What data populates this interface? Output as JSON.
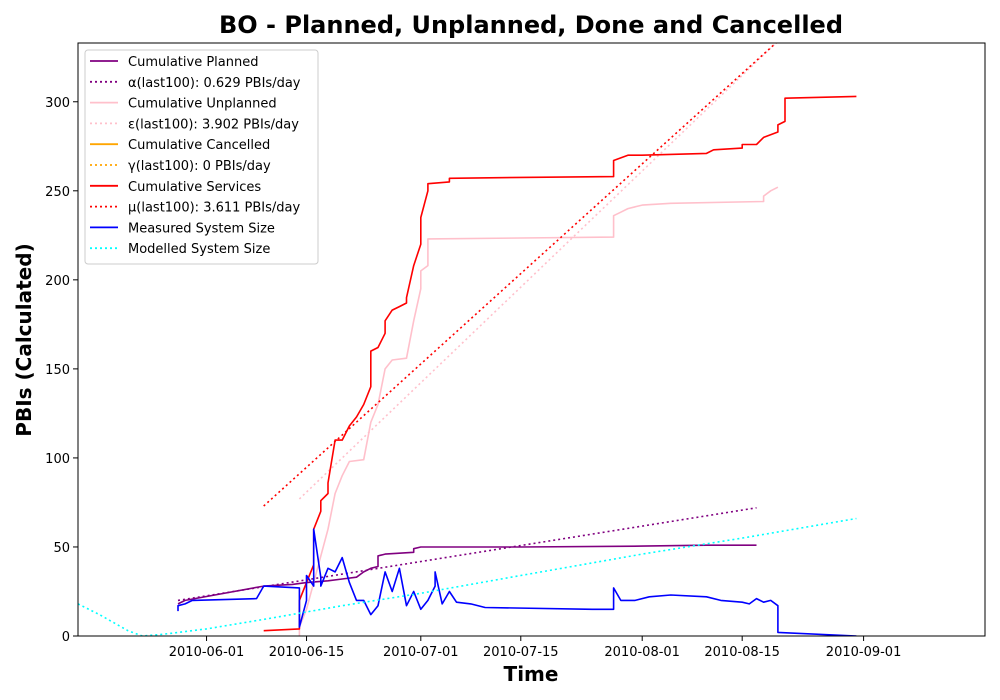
{
  "chart_data": {
    "type": "line",
    "title": "BO - Planned, Unplanned, Done  and Cancelled",
    "xlabel": "Time",
    "ylabel": "PBIs (Calculated)",
    "xlim": [
      "2010-05-14",
      "2010-09-18"
    ],
    "ylim": [
      0,
      333
    ],
    "x_ticks": [
      "2010-06-01",
      "2010-06-15",
      "2010-07-01",
      "2010-07-15",
      "2010-08-01",
      "2010-08-15",
      "2010-09-01"
    ],
    "y_ticks": [
      0,
      50,
      100,
      150,
      200,
      250,
      300
    ],
    "legend_position": "top-left",
    "grid": false,
    "series": [
      {
        "name": "Cumulative Planned",
        "color": "#800080",
        "style": "solid",
        "points": [
          [
            "2010-05-28",
            18
          ],
          [
            "2010-05-29",
            20
          ],
          [
            "2010-06-09",
            28
          ],
          [
            "2010-06-13",
            29
          ],
          [
            "2010-06-15",
            30
          ],
          [
            "2010-06-18",
            31
          ],
          [
            "2010-06-20",
            32
          ],
          [
            "2010-06-22",
            33
          ],
          [
            "2010-06-23",
            36
          ],
          [
            "2010-06-24",
            38
          ],
          [
            "2010-06-25",
            39
          ],
          [
            "2010-06-25",
            45
          ],
          [
            "2010-06-26",
            46
          ],
          [
            "2010-06-30",
            47
          ],
          [
            "2010-06-30",
            49
          ],
          [
            "2010-07-01",
            50
          ],
          [
            "2010-07-15",
            50
          ],
          [
            "2010-08-01",
            50.5
          ],
          [
            "2010-08-10",
            51
          ],
          [
            "2010-08-17",
            51
          ]
        ]
      },
      {
        "name": "α(last100): 0.629 PBIs/day",
        "color": "#800080",
        "style": "dotted",
        "points": [
          [
            "2010-05-28",
            20
          ],
          [
            "2010-08-17",
            72
          ]
        ]
      },
      {
        "name": "Cumulative Unplanned",
        "color": "#ffc0cb",
        "style": "solid",
        "points": [
          [
            "2010-06-14",
            0
          ],
          [
            "2010-06-14",
            5
          ],
          [
            "2010-06-15",
            15
          ],
          [
            "2010-06-16",
            30
          ],
          [
            "2010-06-18",
            60
          ],
          [
            "2010-06-19",
            80
          ],
          [
            "2010-06-20",
            90
          ],
          [
            "2010-06-21",
            98
          ],
          [
            "2010-06-23",
            99
          ],
          [
            "2010-06-24",
            120
          ],
          [
            "2010-06-25",
            130
          ],
          [
            "2010-06-26",
            150
          ],
          [
            "2010-06-27",
            155
          ],
          [
            "2010-06-29",
            156
          ],
          [
            "2010-06-30",
            177
          ],
          [
            "2010-07-01",
            195
          ],
          [
            "2010-07-01",
            205
          ],
          [
            "2010-07-02",
            208
          ],
          [
            "2010-07-02",
            223
          ],
          [
            "2010-07-15",
            223.5
          ],
          [
            "2010-07-28",
            224
          ],
          [
            "2010-07-28",
            236
          ],
          [
            "2010-07-29",
            238
          ],
          [
            "2010-07-30",
            240
          ],
          [
            "2010-08-01",
            242
          ],
          [
            "2010-08-05",
            243
          ],
          [
            "2010-08-18",
            244
          ],
          [
            "2010-08-18",
            247
          ],
          [
            "2010-08-19",
            250
          ],
          [
            "2010-08-20",
            252
          ]
        ]
      },
      {
        "name": "ε(last100): 3.902 PBIs/day",
        "color": "#ffc0cb",
        "style": "dotted",
        "points": [
          [
            "2010-06-14",
            77
          ],
          [
            "2010-08-20",
            334
          ]
        ]
      },
      {
        "name": "Cumulative Cancelled",
        "color": "#ffa500",
        "style": "solid",
        "points": []
      },
      {
        "name": "γ(last100): 0 PBIs/day",
        "color": "#ffa500",
        "style": "dotted",
        "points": []
      },
      {
        "name": "Cumulative Services",
        "color": "#ff0000",
        "style": "solid",
        "points": [
          [
            "2010-06-09",
            3
          ],
          [
            "2010-06-14",
            4
          ],
          [
            "2010-06-14",
            20
          ],
          [
            "2010-06-15",
            30
          ],
          [
            "2010-06-16",
            40
          ],
          [
            "2010-06-16",
            60
          ],
          [
            "2010-06-17",
            70
          ],
          [
            "2010-06-17",
            76
          ],
          [
            "2010-06-18",
            80
          ],
          [
            "2010-06-18",
            86
          ],
          [
            "2010-06-19",
            110
          ],
          [
            "2010-06-20",
            110
          ],
          [
            "2010-06-21",
            118
          ],
          [
            "2010-06-22",
            123
          ],
          [
            "2010-06-23",
            130
          ],
          [
            "2010-06-24",
            140
          ],
          [
            "2010-06-24",
            160
          ],
          [
            "2010-06-25",
            162
          ],
          [
            "2010-06-26",
            170
          ],
          [
            "2010-06-26",
            177
          ],
          [
            "2010-06-27",
            183
          ],
          [
            "2010-06-28",
            185
          ],
          [
            "2010-06-29",
            187
          ],
          [
            "2010-06-29",
            190
          ],
          [
            "2010-06-30",
            208
          ],
          [
            "2010-07-01",
            220
          ],
          [
            "2010-07-01",
            235
          ],
          [
            "2010-07-02",
            250
          ],
          [
            "2010-07-02",
            254
          ],
          [
            "2010-07-05",
            255
          ],
          [
            "2010-07-05",
            257
          ],
          [
            "2010-07-15",
            257.5
          ],
          [
            "2010-07-28",
            258
          ],
          [
            "2010-07-28",
            267
          ],
          [
            "2010-07-30",
            270
          ],
          [
            "2010-08-01",
            270
          ],
          [
            "2010-08-10",
            271
          ],
          [
            "2010-08-11",
            273
          ],
          [
            "2010-08-15",
            274
          ],
          [
            "2010-08-15",
            276
          ],
          [
            "2010-08-17",
            276
          ],
          [
            "2010-08-18",
            280
          ],
          [
            "2010-08-20",
            283
          ],
          [
            "2010-08-20",
            287
          ],
          [
            "2010-08-21",
            289
          ],
          [
            "2010-08-21",
            302
          ],
          [
            "2010-08-31",
            303
          ]
        ]
      },
      {
        "name": "μ(last100): 3.611 PBIs/day",
        "color": "#ff0000",
        "style": "dotted",
        "points": [
          [
            "2010-06-09",
            73
          ],
          [
            "2010-08-20",
            334
          ]
        ]
      },
      {
        "name": "Measured System Size",
        "color": "#0000ff",
        "style": "solid",
        "points": [
          [
            "2010-05-28",
            14
          ],
          [
            "2010-05-28",
            17
          ],
          [
            "2010-05-29",
            18
          ],
          [
            "2010-05-30",
            20
          ],
          [
            "2010-06-08",
            21
          ],
          [
            "2010-06-09",
            28
          ],
          [
            "2010-06-14",
            27
          ],
          [
            "2010-06-14",
            5
          ],
          [
            "2010-06-15",
            20
          ],
          [
            "2010-06-15",
            34
          ],
          [
            "2010-06-16",
            28
          ],
          [
            "2010-06-16",
            60
          ],
          [
            "2010-06-17",
            33
          ],
          [
            "2010-06-17",
            28
          ],
          [
            "2010-06-18",
            38
          ],
          [
            "2010-06-19",
            36
          ],
          [
            "2010-06-20",
            44
          ],
          [
            "2010-06-21",
            30
          ],
          [
            "2010-06-22",
            20
          ],
          [
            "2010-06-23",
            20
          ],
          [
            "2010-06-24",
            12
          ],
          [
            "2010-06-25",
            17
          ],
          [
            "2010-06-26",
            36
          ],
          [
            "2010-06-27",
            25
          ],
          [
            "2010-06-28",
            38
          ],
          [
            "2010-06-29",
            17
          ],
          [
            "2010-06-30",
            25
          ],
          [
            "2010-07-01",
            15
          ],
          [
            "2010-07-02",
            20
          ],
          [
            "2010-07-03",
            28
          ],
          [
            "2010-07-03",
            36
          ],
          [
            "2010-07-04",
            18
          ],
          [
            "2010-07-05",
            25
          ],
          [
            "2010-07-06",
            19
          ],
          [
            "2010-07-08",
            18
          ],
          [
            "2010-07-10",
            16
          ],
          [
            "2010-07-25",
            15
          ],
          [
            "2010-07-28",
            15
          ],
          [
            "2010-07-28",
            27
          ],
          [
            "2010-07-29",
            20
          ],
          [
            "2010-07-31",
            20
          ],
          [
            "2010-08-02",
            22
          ],
          [
            "2010-08-05",
            23
          ],
          [
            "2010-08-10",
            22
          ],
          [
            "2010-08-12",
            20
          ],
          [
            "2010-08-15",
            19
          ],
          [
            "2010-08-16",
            18
          ],
          [
            "2010-08-17",
            21
          ],
          [
            "2010-08-18",
            19
          ],
          [
            "2010-08-19",
            20
          ],
          [
            "2010-08-20",
            17
          ],
          [
            "2010-08-20",
            2
          ],
          [
            "2010-08-31",
            0
          ]
        ]
      },
      {
        "name": "Modelled System Size",
        "color": "#00ffff",
        "style": "dotted",
        "points": [
          [
            "2010-05-14",
            18
          ],
          [
            "2010-05-17",
            12
          ],
          [
            "2010-05-21",
            3
          ],
          [
            "2010-05-23",
            0
          ],
          [
            "2010-05-26",
            1
          ],
          [
            "2010-06-01",
            4
          ],
          [
            "2010-06-10",
            10
          ],
          [
            "2010-06-20",
            17
          ],
          [
            "2010-07-01",
            24
          ],
          [
            "2010-07-15",
            34
          ],
          [
            "2010-08-01",
            46
          ],
          [
            "2010-08-15",
            55
          ],
          [
            "2010-08-31",
            66
          ]
        ]
      }
    ]
  }
}
